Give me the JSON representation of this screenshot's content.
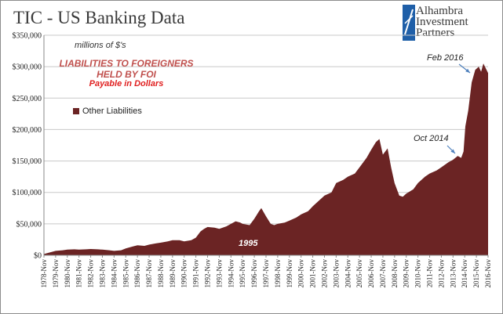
{
  "header": {
    "title": "TIC - US Banking Data",
    "logo_lines": [
      "Alhambra",
      "Investment",
      "Partners"
    ]
  },
  "annotations": {
    "units": "millions of $'s",
    "subtitle_line1": "LIABILITIES TO FOREIGNERS",
    "subtitle_line2": "HELD BY FOI",
    "subtitle_line3": "Payable  in Dollars",
    "feb_2016": "Feb 2016",
    "oct_2014": "Oct 2014",
    "year_1995": "1995"
  },
  "colors": {
    "area": "#6b2424",
    "grid": "#c8c8c8",
    "arrow": "#4f81bd"
  },
  "chart_data": {
    "type": "area",
    "xlabel": "",
    "ylabel": "",
    "ylim": [
      0,
      350000
    ],
    "yticks": [
      "$0",
      "$50,000",
      "$100,000",
      "$150,000",
      "$200,000",
      "$250,000",
      "$300,000",
      "$350,000"
    ],
    "grid": true,
    "legend_position": "left",
    "x_tick_labels": [
      "1978-Nov",
      "1979-Nov",
      "1980-Nov",
      "1981-Nov",
      "1982-Nov",
      "1983-Nov",
      "1984-Nov",
      "1985-Nov",
      "1986-Nov",
      "1987-Nov",
      "1988-Nov",
      "1989-Nov",
      "1990-Nov",
      "1991-Nov",
      "1992-Nov",
      "1993-Nov",
      "1994-Nov",
      "1995-Nov",
      "1996-Nov",
      "1997-Nov",
      "1998-Nov",
      "1999-Nov",
      "2000-Nov",
      "2001-Nov",
      "2002-Nov",
      "2003-Nov",
      "2004-Nov",
      "2005-Nov",
      "2006-Nov",
      "2007-Nov",
      "2008-Nov",
      "2009-Nov",
      "2010-Nov",
      "2011-Nov",
      "2012-Nov",
      "2013-Nov",
      "2014-Nov",
      "2015-Nov",
      "2016-Nov"
    ],
    "series": [
      {
        "name": "Other Liabilities",
        "x": [
          1978.9,
          1979.5,
          1979.9,
          1980.5,
          1980.9,
          1981.5,
          1981.9,
          1982.5,
          1982.9,
          1983.5,
          1983.9,
          1984.5,
          1984.9,
          1985.5,
          1985.9,
          1986.5,
          1986.9,
          1987.5,
          1987.9,
          1988.5,
          1988.9,
          1989.5,
          1989.9,
          1990.5,
          1990.9,
          1991.5,
          1991.9,
          1992.3,
          1992.6,
          1992.9,
          1993.5,
          1993.9,
          1994.5,
          1994.9,
          1995.3,
          1995.7,
          1995.9,
          1996.5,
          1996.9,
          1997.3,
          1997.5,
          1997.9,
          1998.3,
          1998.6,
          1998.9,
          1999.5,
          1999.9,
          2000.5,
          2000.9,
          2001.5,
          2001.9,
          2002.5,
          2002.9,
          2003.5,
          2003.9,
          2004.5,
          2004.9,
          2005.5,
          2005.9,
          2006.5,
          2006.9,
          2007.3,
          2007.6,
          2007.9,
          2008.3,
          2008.6,
          2008.9,
          2009.3,
          2009.6,
          2009.9,
          2010.5,
          2010.9,
          2011.5,
          2011.9,
          2012.5,
          2012.9,
          2013.5,
          2013.9,
          2014.3,
          2014.6,
          2014.8,
          2014.95,
          2015.2,
          2015.5,
          2015.8,
          2016.1,
          2016.3,
          2016.5,
          2016.9
        ],
        "values": [
          2000,
          5000,
          7000,
          8000,
          9000,
          9500,
          9000,
          9500,
          10000,
          9500,
          9000,
          8000,
          7000,
          8000,
          11000,
          14000,
          16000,
          15000,
          17000,
          19000,
          20000,
          22000,
          24000,
          24000,
          22000,
          24000,
          28000,
          38000,
          42000,
          45000,
          44000,
          42000,
          46000,
          50000,
          54000,
          52000,
          50000,
          48000,
          58000,
          70000,
          75000,
          62000,
          50000,
          48000,
          50000,
          52000,
          55000,
          60000,
          65000,
          70000,
          78000,
          88000,
          95000,
          100000,
          115000,
          120000,
          125000,
          130000,
          140000,
          155000,
          168000,
          180000,
          185000,
          160000,
          170000,
          140000,
          115000,
          95000,
          93000,
          98000,
          105000,
          115000,
          125000,
          130000,
          135000,
          140000,
          148000,
          152000,
          158000,
          155000,
          165000,
          205000,
          230000,
          275000,
          295000,
          300000,
          292000,
          305000,
          290000
        ]
      }
    ]
  }
}
